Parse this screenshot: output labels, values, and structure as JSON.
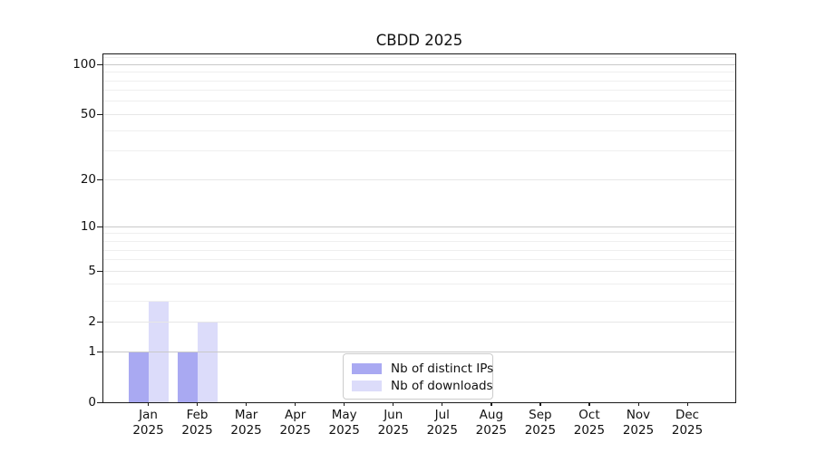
{
  "chart_data": {
    "type": "bar",
    "title": "CBDD 2025",
    "categories": [
      "Jan",
      "Feb",
      "Mar",
      "Apr",
      "May",
      "Jun",
      "Jul",
      "Aug",
      "Sep",
      "Oct",
      "Nov",
      "Dec"
    ],
    "category_year": "2025",
    "series": [
      {
        "name": "Nb of distinct IPs",
        "color": "#a9a9f2",
        "values": [
          1,
          1,
          0,
          0,
          0,
          0,
          0,
          0,
          0,
          0,
          0,
          0
        ]
      },
      {
        "name": "Nb of downloads",
        "color": "#dcdcfa",
        "values": [
          3,
          2,
          0,
          0,
          0,
          0,
          0,
          0,
          0,
          0,
          0,
          0
        ]
      }
    ],
    "xlabel": "",
    "ylabel": "",
    "yscale": "log1p",
    "ylim": [
      0,
      115
    ],
    "yticks": [
      0,
      1,
      2,
      5,
      10,
      20,
      50,
      100
    ],
    "minor_gridlines": [
      3,
      4,
      6,
      7,
      8,
      9,
      30,
      40,
      60,
      70,
      80,
      90,
      110
    ],
    "emphasized_gridlines": [
      1,
      10,
      100
    ],
    "grid": true,
    "grid_above_bars": true,
    "legend_position": "lower center",
    "colors": {
      "grid_minor": "#efefef",
      "grid_mid": "#e7e7e7",
      "grid_major": "#c9c9c9",
      "axis": "#1a1a1a",
      "text": "#111111",
      "legend_border": "#cccccc",
      "background": "#ffffff"
    }
  }
}
